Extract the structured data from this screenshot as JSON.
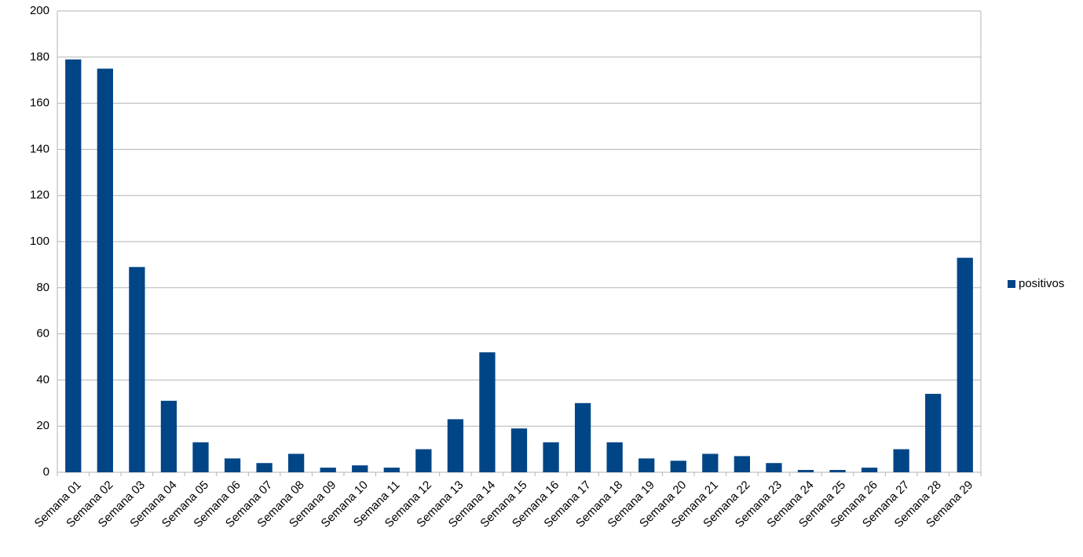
{
  "chart_data": {
    "type": "bar",
    "categories": [
      "Semana 01",
      "Semana 02",
      "Semana 03",
      "Semana 04",
      "Semana 05",
      "Semana 06",
      "Semana 07",
      "Semana 08",
      "Semana 09",
      "Semana 10",
      "Semana 11",
      "Semana 12",
      "Semana 13",
      "Semana 14",
      "Semana 15",
      "Semana 16",
      "Semana 17",
      "Semana 18",
      "Semana 19",
      "Semana 20",
      "Semana 21",
      "Semana 22",
      "Semana 23",
      "Semana 24",
      "Semana 25",
      "Semana 26",
      "Semana 27",
      "Semana 28",
      "Semana 29"
    ],
    "series": [
      {
        "name": "positivos",
        "color": "#004586",
        "values": [
          179,
          175,
          89,
          31,
          13,
          6,
          4,
          8,
          2,
          3,
          2,
          10,
          23,
          52,
          19,
          13,
          30,
          13,
          6,
          5,
          8,
          7,
          4,
          1,
          1,
          2,
          10,
          34,
          93
        ]
      }
    ],
    "ylim": [
      0,
      200
    ],
    "yticks": [
      0,
      20,
      40,
      60,
      80,
      100,
      120,
      140,
      160,
      180,
      200
    ],
    "grid": true,
    "legend": "right"
  }
}
